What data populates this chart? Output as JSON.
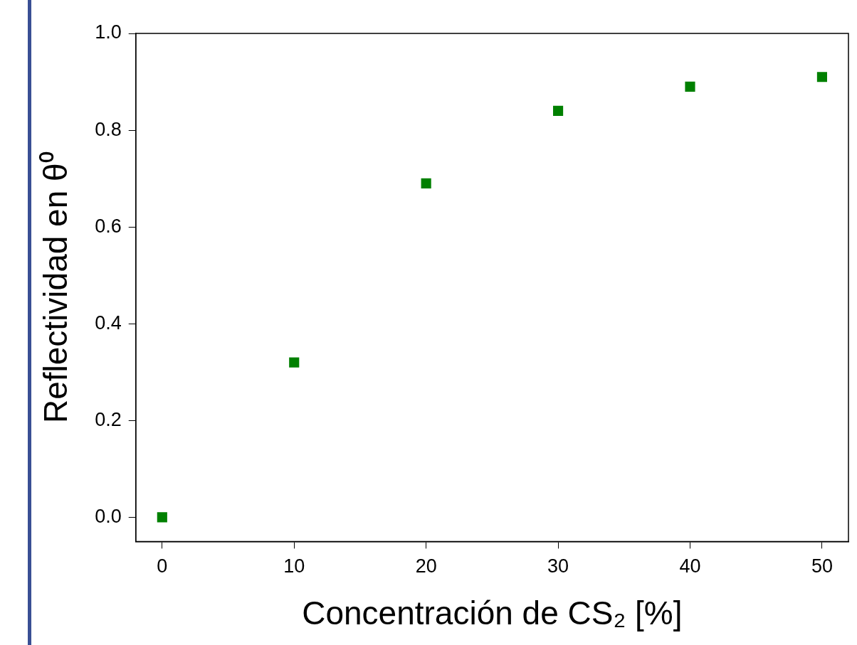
{
  "chart_data": {
    "type": "scatter",
    "xlabel": "Concentración de CS₂ [%]",
    "ylabel": "Reflectividad en θ⁰",
    "x": [
      0,
      10,
      20,
      30,
      40,
      50
    ],
    "series": [
      {
        "color": "#008000",
        "values": [
          0.0,
          0.32,
          0.69,
          0.84,
          0.89,
          0.91
        ]
      }
    ],
    "xlim": [
      -2,
      52
    ],
    "xticks": [
      0,
      10,
      20,
      30,
      40,
      50
    ],
    "ylim": [
      -0.05,
      1.0
    ],
    "yticks": [
      {
        "value": 0,
        "label": "0.0"
      },
      {
        "value": 0.2,
        "label": "0.2"
      },
      {
        "value": 0.4,
        "label": "0.4"
      },
      {
        "value": 0.6,
        "label": "0.6"
      },
      {
        "value": 0.8,
        "label": "0.8"
      },
      {
        "value": 1.0,
        "label": "1.0"
      }
    ],
    "marker": "square",
    "grid": false,
    "legend": false
  }
}
